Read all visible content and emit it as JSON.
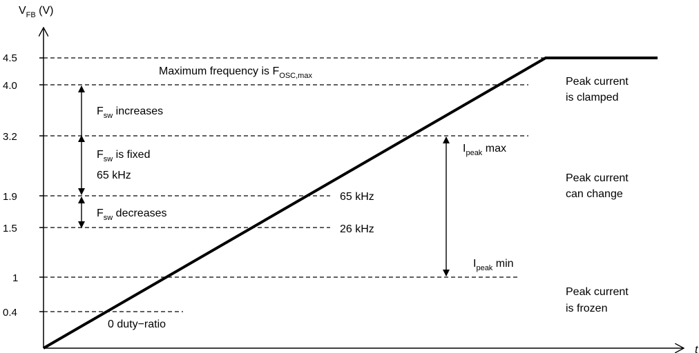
{
  "y_axis": {
    "label": "V",
    "label_sub": "FB",
    "label_unit": " (V)"
  },
  "x_axis": {
    "label": "t"
  },
  "levels": [
    {
      "value": "4.5"
    },
    {
      "value": "4.0"
    },
    {
      "value": "3.2"
    },
    {
      "value": "1.9"
    },
    {
      "value": "1.5"
    },
    {
      "value": "1"
    },
    {
      "value": "0.4"
    }
  ],
  "annotations": {
    "max_freq": {
      "text": "Maximum frequency is F",
      "sub": "OSC,max"
    },
    "fsw_increases": {
      "text": "F",
      "sub": "sw",
      "rest": " increases"
    },
    "fsw_fixed": {
      "text": "F",
      "sub": "sw",
      "rest": " is fixed"
    },
    "fsw_fixed_value": "65 kHz",
    "fsw_decreases": {
      "text": "F",
      "sub": "sw",
      "rest": " decreases"
    },
    "freq_65": "65 kHz",
    "freq_26": "26 kHz",
    "ipeak_max": {
      "text": "I",
      "sub": "peak",
      "rest": " max"
    },
    "ipeak_min": {
      "text": "I",
      "sub": "peak",
      "rest": " min"
    },
    "zero_duty": "0 duty−ratio"
  },
  "regions": {
    "clamped": [
      "Peak current",
      "is clamped"
    ],
    "change": [
      "Peak current",
      "can change"
    ],
    "frozen": [
      "Peak current",
      "is frozen"
    ]
  },
  "chart_data": {
    "type": "line",
    "x_axis_label": "t",
    "y_axis_label": "VFB (V)",
    "y_ticks": [
      4.5,
      4.0,
      3.2,
      1.9,
      1.5,
      1,
      0.4
    ],
    "series": [
      {
        "points": [
          [
            0,
            0
          ],
          [
            1,
            4.5
          ],
          [
            1.2,
            4.5
          ]
        ]
      }
    ]
  }
}
